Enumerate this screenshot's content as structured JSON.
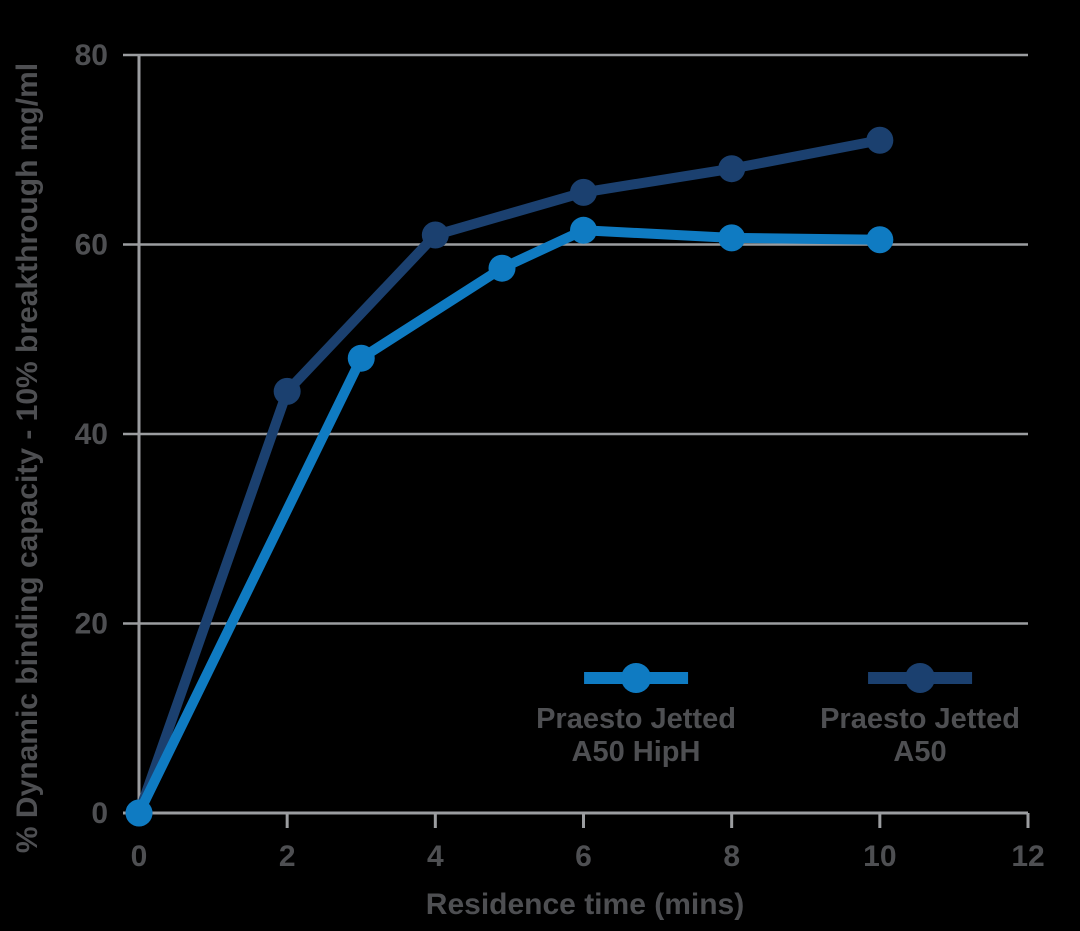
{
  "chart_data": {
    "type": "line",
    "title": "",
    "xlabel": "Residence time (mins)",
    "ylabel": "% Dynamic binding capacity - 10% breakthrough mg/ml",
    "xlim": [
      0,
      12
    ],
    "ylim": [
      0,
      80
    ],
    "xticks": [
      0,
      2,
      4,
      6,
      8,
      10,
      12
    ],
    "yticks": [
      0,
      20,
      40,
      60,
      80
    ],
    "grid": "horizontal-y-gridlines",
    "legend_position": "inside-bottom-right",
    "series": [
      {
        "name": "Praesto Jetted A50 HipH",
        "legend_lines": [
          "Praesto Jetted",
          "A50 HipH"
        ],
        "color": "#0f7bc2",
        "marker": "circle",
        "x": [
          0,
          3,
          4.9,
          6,
          8,
          10
        ],
        "y": [
          0,
          48,
          57.5,
          61.5,
          60.7,
          60.5
        ]
      },
      {
        "name": "Praesto Jetted A50",
        "legend_lines": [
          "Praesto Jetted",
          "A50"
        ],
        "color": "#1b406f",
        "marker": "circle",
        "x": [
          0,
          2,
          4,
          6,
          8,
          10
        ],
        "y": [
          0,
          44.5,
          61,
          65.5,
          68,
          71
        ]
      }
    ],
    "colors": {
      "background": "#000000",
      "grid": "#9b9da0",
      "axis": "#9b9da0",
      "text": "#4e4f52"
    }
  }
}
